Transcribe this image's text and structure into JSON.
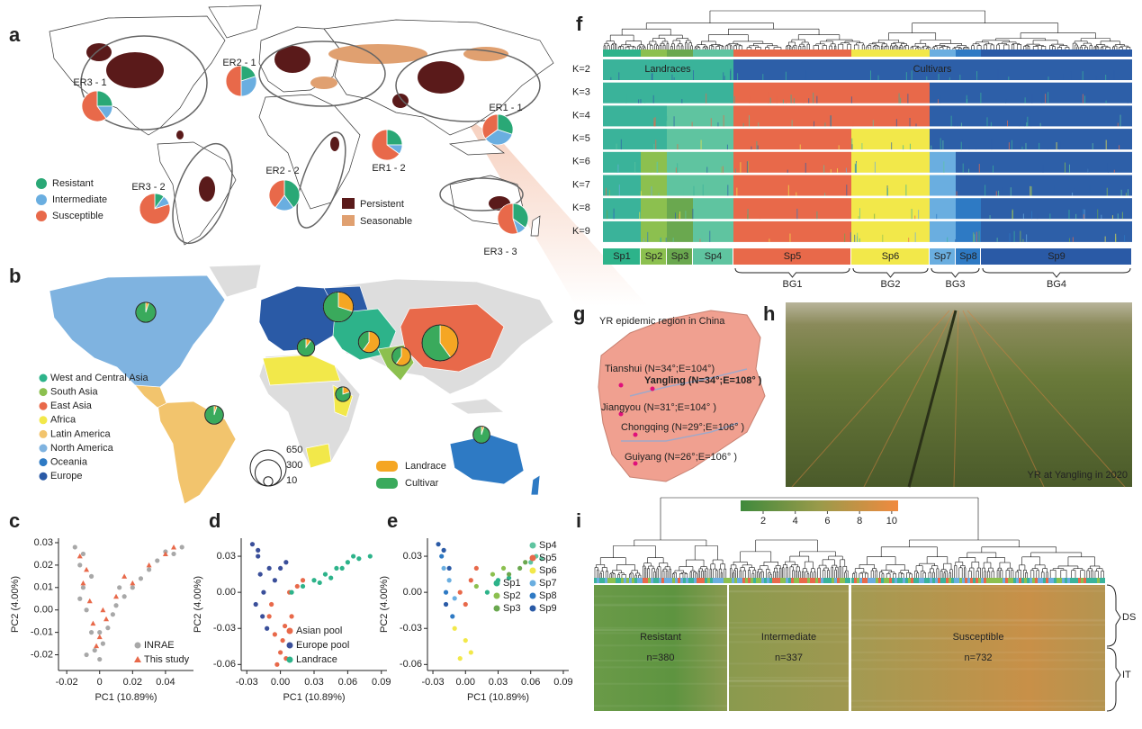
{
  "panel_a": {
    "letter": "a",
    "slice_colors": [
      "#2aa876",
      "#6aaee0",
      "#e8694a"
    ],
    "legend": [
      "Resistant",
      "Intermediate",
      "Susceptible"
    ],
    "map_legend": [
      "Persistent",
      "Seasonable"
    ],
    "map_colors": [
      "#5a1a1a",
      "#e0a070"
    ],
    "pies": [
      {
        "label": "ER3 - 1",
        "values": [
          25,
          15,
          60
        ]
      },
      {
        "label": "ER2 - 1",
        "values": [
          20,
          30,
          50
        ]
      },
      {
        "label": "ER1 - 1",
        "values": [
          30,
          35,
          35
        ]
      },
      {
        "label": "ER3 - 2",
        "values": [
          10,
          10,
          80
        ]
      },
      {
        "label": "ER2 - 2",
        "values": [
          40,
          20,
          40
        ]
      },
      {
        "label": "ER1 - 2",
        "values": [
          25,
          10,
          65
        ]
      },
      {
        "label": "ER3 - 3",
        "values": [
          35,
          10,
          55
        ]
      }
    ]
  },
  "panel_b": {
    "letter": "b",
    "regions": [
      {
        "name": "West and Central Asia",
        "color": "#2db38a"
      },
      {
        "name": "South Asia",
        "color": "#8cc04f"
      },
      {
        "name": "East Asia",
        "color": "#e8694a"
      },
      {
        "name": "Africa",
        "color": "#f2e84a"
      },
      {
        "name": "Latin America",
        "color": "#f2c46d"
      },
      {
        "name": "North America",
        "color": "#7fb3e0"
      },
      {
        "name": "Oceania",
        "color": "#2e7ac4"
      },
      {
        "name": "Europe",
        "color": "#2a5aa6"
      }
    ],
    "type_legend": [
      "Landrace",
      "Cultivar"
    ],
    "slice_colors": [
      "#f5a623",
      "#3aaa5c"
    ],
    "size_legend": [
      650,
      300,
      10
    ],
    "pies": [
      {
        "values": [
          5,
          95
        ],
        "size": 150
      },
      {
        "values": [
          30,
          70
        ],
        "size": 420
      },
      {
        "values": [
          10,
          90
        ],
        "size": 100
      },
      {
        "values": [
          60,
          40
        ],
        "size": 170
      },
      {
        "values": [
          60,
          40
        ],
        "size": 120
      },
      {
        "values": [
          40,
          60
        ],
        "size": 650
      },
      {
        "values": [
          20,
          80
        ],
        "size": 60
      },
      {
        "values": [
          5,
          95
        ],
        "size": 120
      },
      {
        "values": [
          5,
          95
        ],
        "size": 90
      }
    ]
  },
  "chart_data": [
    {
      "type": "scatter",
      "letter": "c",
      "xlabel": "PC1 (10.89%)",
      "ylabel": "PC2 (4.00%)",
      "xlim": [
        -0.025,
        0.057
      ],
      "ylim": [
        -0.027,
        0.032
      ],
      "xticks": [
        -0.02,
        0,
        0.02,
        0.04
      ],
      "yticks": [
        -0.02,
        -0.01,
        {
          "value": 0,
          "label": "0.00"
        },
        0.01,
        0.02,
        0.03
      ],
      "legend": "lower right",
      "series": [
        {
          "name": "INRAE",
          "color": "#a8a8a8",
          "marker": "circle",
          "x": [
            -0.015,
            -0.012,
            -0.01,
            -0.008,
            -0.005,
            -0.003,
            0,
            0.002,
            0.005,
            0.008,
            0.01,
            0.015,
            0.02,
            0.025,
            0.03,
            0.035,
            0.04,
            0.045,
            0.05,
            -0.01,
            -0.005,
            0,
            -0.012,
            -0.008,
            0.012
          ],
          "values": [
            0.028,
            0.02,
            0.01,
            0.0,
            -0.01,
            -0.018,
            -0.022,
            -0.015,
            -0.008,
            -0.002,
            0.002,
            0.006,
            0.01,
            0.014,
            0.018,
            0.022,
            0.026,
            0.025,
            0.028,
            0.025,
            0.015,
            -0.01,
            0.005,
            -0.02,
            0.01
          ]
        },
        {
          "name": "This study",
          "color": "#e8694a",
          "marker": "triangle",
          "x": [
            -0.012,
            -0.01,
            -0.006,
            -0.004,
            0,
            0.004,
            0.01,
            0.02,
            0.03,
            0.04,
            -0.008,
            0.002,
            0.015,
            0.045,
            -0.002
          ],
          "values": [
            0.024,
            0.012,
            0.004,
            -0.006,
            -0.012,
            -0.004,
            0.006,
            0.012,
            0.02,
            0.025,
            0.018,
            0.0,
            0.015,
            0.028,
            -0.016
          ]
        }
      ]
    },
    {
      "type": "scatter",
      "letter": "d",
      "xlabel": "PC1 (10.89%)",
      "ylabel": "PC2 (4.00%)",
      "xlim": [
        -0.035,
        0.095
      ],
      "ylim": [
        -0.065,
        0.045
      ],
      "xticks": [
        -0.03,
        {
          "value": 0,
          "label": "0.00"
        },
        0.03,
        0.06,
        0.09
      ],
      "yticks": [
        -0.06,
        -0.03,
        {
          "value": 0,
          "label": "0.00"
        },
        0.03
      ],
      "legend": "lower right",
      "series": [
        {
          "name": "Asian pool",
          "color": "#e8694a",
          "marker": "circle",
          "x": [
            -0.01,
            -0.005,
            0,
            0.005,
            -0.008,
            0.002,
            0.01,
            0.015,
            -0.003,
            0.004,
            0.02,
            0.008
          ],
          "values": [
            -0.02,
            -0.035,
            -0.05,
            -0.055,
            -0.01,
            -0.04,
            -0.02,
            0.005,
            -0.06,
            -0.028,
            0.01,
            0.0
          ]
        },
        {
          "name": "Europe pool",
          "color": "#3a4f9a",
          "marker": "circle",
          "x": [
            -0.025,
            -0.02,
            -0.018,
            -0.015,
            -0.01,
            -0.022,
            -0.012,
            -0.005,
            0,
            -0.02,
            -0.016,
            0.005
          ],
          "values": [
            0.04,
            0.03,
            0.015,
            0.0,
            0.02,
            -0.01,
            -0.03,
            0.01,
            0.02,
            0.035,
            -0.02,
            0.025
          ]
        },
        {
          "name": "Landrace",
          "color": "#2db38a",
          "marker": "circle",
          "x": [
            0.01,
            0.02,
            0.03,
            0.04,
            0.05,
            0.06,
            0.065,
            0.07,
            0.045,
            0.035,
            0.055,
            0.08
          ],
          "values": [
            0.0,
            0.005,
            0.01,
            0.015,
            0.02,
            0.025,
            0.03,
            0.028,
            0.012,
            0.008,
            0.02,
            0.03
          ]
        }
      ]
    },
    {
      "type": "scatter",
      "letter": "e",
      "xlabel": "PC1 (10.89%)",
      "ylabel": "PC2 (4.00%)",
      "xlim": [
        -0.035,
        0.095
      ],
      "ylim": [
        -0.065,
        0.045
      ],
      "xticks": [
        -0.03,
        {
          "value": 0,
          "label": "0.00"
        },
        0.03,
        0.06,
        0.09
      ],
      "yticks": [
        -0.06,
        -0.03,
        {
          "value": 0,
          "label": "0.00"
        },
        0.03
      ],
      "legend": "upper right",
      "series": [
        {
          "name": "Sp1",
          "color": "#2db38a",
          "marker": "circle",
          "x": [
            0.02,
            0.03,
            0.04
          ],
          "values": [
            0.0,
            0.01,
            0.012
          ]
        },
        {
          "name": "Sp2",
          "color": "#8cc04f",
          "marker": "circle",
          "x": [
            0.01,
            0.025,
            0.035
          ],
          "values": [
            0.005,
            0.015,
            0.02
          ]
        },
        {
          "name": "Sp3",
          "color": "#6aa84f",
          "marker": "circle",
          "x": [
            0.04,
            0.05,
            0.055
          ],
          "values": [
            0.015,
            0.02,
            0.025
          ]
        },
        {
          "name": "Sp4",
          "color": "#5fc4a0",
          "marker": "circle",
          "x": [
            0.06,
            0.065,
            0.07
          ],
          "values": [
            0.025,
            0.03,
            0.028
          ]
        },
        {
          "name": "Sp5",
          "color": "#e8694a",
          "marker": "circle",
          "x": [
            -0.005,
            0.005,
            0.01,
            0.0
          ],
          "values": [
            0.0,
            0.01,
            0.02,
            -0.01
          ]
        },
        {
          "name": "Sp6",
          "color": "#f2e84a",
          "marker": "circle",
          "x": [
            -0.01,
            0,
            0.005,
            -0.005
          ],
          "values": [
            -0.03,
            -0.04,
            -0.05,
            -0.055
          ]
        },
        {
          "name": "Sp7",
          "color": "#6aaee0",
          "marker": "circle",
          "x": [
            -0.02,
            -0.015,
            -0.01
          ],
          "values": [
            0.02,
            0.01,
            -0.005
          ]
        },
        {
          "name": "Sp8",
          "color": "#2e7ac4",
          "marker": "circle",
          "x": [
            -0.022,
            -0.018,
            -0.012
          ],
          "values": [
            0.03,
            0.0,
            -0.02
          ]
        },
        {
          "name": "Sp9",
          "color": "#2a5aa6",
          "marker": "circle",
          "x": [
            -0.025,
            -0.02,
            -0.015,
            -0.018
          ],
          "values": [
            0.04,
            0.035,
            0.02,
            -0.01
          ]
        }
      ]
    }
  ],
  "panel_f": {
    "letter": "f",
    "top_labels": [
      "Landraces",
      "Cultivars"
    ],
    "subpops": [
      {
        "name": "Sp1",
        "color": "#2db38a"
      },
      {
        "name": "Sp2",
        "color": "#8cc04f"
      },
      {
        "name": "Sp3",
        "color": "#6aa84f"
      },
      {
        "name": "Sp4",
        "color": "#5fc4a0"
      },
      {
        "name": "Sp5",
        "color": "#e8694a"
      },
      {
        "name": "Sp6",
        "color": "#f2e84a"
      },
      {
        "name": "Sp7",
        "color": "#6aaee0"
      },
      {
        "name": "Sp8",
        "color": "#2e7ac4"
      },
      {
        "name": "Sp9",
        "color": "#2a5aa6"
      }
    ],
    "bg_labels": [
      "BG1",
      "BG2",
      "BG3",
      "BG4"
    ],
    "rows": [
      {
        "label": "K=2",
        "colors": [
          "#3ab39a",
          "#3ab39a",
          "#3ab39a",
          "#3ab39a",
          "#2d5fa8",
          "#2d5fa8",
          "#2d5fa8",
          "#2d5fa8",
          "#2d5fa8"
        ]
      },
      {
        "label": "K=3",
        "colors": [
          "#3ab39a",
          "#3ab39a",
          "#3ab39a",
          "#3ab39a",
          "#e8694a",
          "#e8694a",
          "#2d5fa8",
          "#2d5fa8",
          "#2d5fa8"
        ]
      },
      {
        "label": "K=4",
        "colors": [
          "#3ab39a",
          "#3ab39a",
          "#5fc4a0",
          "#5fc4a0",
          "#e8694a",
          "#e8694a",
          "#2d5fa8",
          "#2d5fa8",
          "#2d5fa8"
        ]
      },
      {
        "label": "K=5",
        "colors": [
          "#3ab39a",
          "#3ab39a",
          "#5fc4a0",
          "#5fc4a0",
          "#e8694a",
          "#f2e84a",
          "#2d5fa8",
          "#2d5fa8",
          "#2d5fa8"
        ]
      },
      {
        "label": "K=6",
        "colors": [
          "#3ab39a",
          "#8cc04f",
          "#5fc4a0",
          "#5fc4a0",
          "#e8694a",
          "#f2e84a",
          "#6aaee0",
          "#2d5fa8",
          "#2d5fa8"
        ]
      },
      {
        "label": "K=7",
        "colors": [
          "#3ab39a",
          "#8cc04f",
          "#5fc4a0",
          "#5fc4a0",
          "#e8694a",
          "#f2e84a",
          "#6aaee0",
          "#2d5fa8",
          "#2d5fa8"
        ]
      },
      {
        "label": "K=8",
        "colors": [
          "#3ab39a",
          "#8cc04f",
          "#6aa84f",
          "#5fc4a0",
          "#e8694a",
          "#f2e84a",
          "#6aaee0",
          "#2e7ac4",
          "#2d5fa8"
        ]
      },
      {
        "label": "K=9",
        "colors": [
          "#3ab39a",
          "#8cc04f",
          "#6aa84f",
          "#5fc4a0",
          "#e8694a",
          "#f2e84a",
          "#6aaee0",
          "#2e7ac4",
          "#2d5fa8"
        ]
      }
    ]
  },
  "panel_g": {
    "letter": "g",
    "title": "YR epidemic region in China",
    "sites": [
      "Tianshui (N=34°;E=104°)",
      "Yangling (N=34°;E=108° )",
      "Jiangyou (N=31°;E=104° )",
      "Chongqing (N=29°;E=106° )",
      "Guiyang (N=26°;E=106° )"
    ]
  },
  "panel_h": {
    "letter": "h",
    "caption": "YR at Yangling in 2020"
  },
  "panel_i": {
    "letter": "i",
    "colorbar_lim": [
      0.6,
      10.4
    ],
    "colorbar_ticks": [
      2,
      4,
      6,
      8,
      10
    ],
    "groups": [
      {
        "label": "Resistant",
        "n": "n=380"
      },
      {
        "label": "Intermediate",
        "n": "n=337"
      },
      {
        "label": "Susceptible",
        "n": "n=732"
      }
    ],
    "row_labels": [
      "DS",
      "IT"
    ]
  }
}
